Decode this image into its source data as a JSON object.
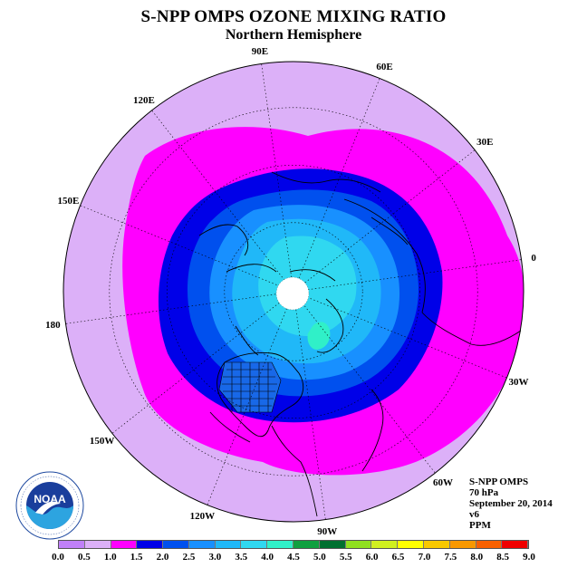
{
  "title": "S-NPP OMPS OZONE MIXING RATIO",
  "subtitle": "Northern Hemisphere",
  "longitude_labels": [
    {
      "text": "90E",
      "lon": 90
    },
    {
      "text": "60E",
      "lon": 60
    },
    {
      "text": "30E",
      "lon": 30
    },
    {
      "text": "0",
      "lon": 0
    },
    {
      "text": "30W",
      "lon": -30
    },
    {
      "text": "60W",
      "lon": -60
    },
    {
      "text": "90W",
      "lon": -90
    },
    {
      "text": "120W",
      "lon": -120
    },
    {
      "text": "150W",
      "lon": -150
    },
    {
      "text": "180",
      "lon": 180
    },
    {
      "text": "150E",
      "lon": 150
    },
    {
      "text": "120E",
      "lon": 120
    }
  ],
  "info": {
    "instrument": "S-NPP OMPS",
    "level": "70 hPa",
    "date": "September 20, 2014",
    "version": "v6",
    "units": "PPM"
  },
  "colorbar": {
    "ticks": [
      "0.0",
      "0.5",
      "1.0",
      "1.5",
      "2.0",
      "2.5",
      "3.0",
      "3.5",
      "4.0",
      "4.5",
      "5.0",
      "5.5",
      "6.0",
      "6.5",
      "7.0",
      "7.5",
      "8.0",
      "8.5",
      "9.0"
    ],
    "colors": [
      "#c080f8",
      "#dcb0f8",
      "#ff00ff",
      "#0000e8",
      "#0050ee",
      "#1890ff",
      "#20b8f8",
      "#30d8f0",
      "#30f0c8",
      "#10a040",
      "#007030",
      "#90e020",
      "#d0f020",
      "#ffff00",
      "#f8c800",
      "#f89800",
      "#f86000",
      "#f00000",
      "#a06040"
    ]
  },
  "logo": {
    "text": "NOAA"
  }
}
